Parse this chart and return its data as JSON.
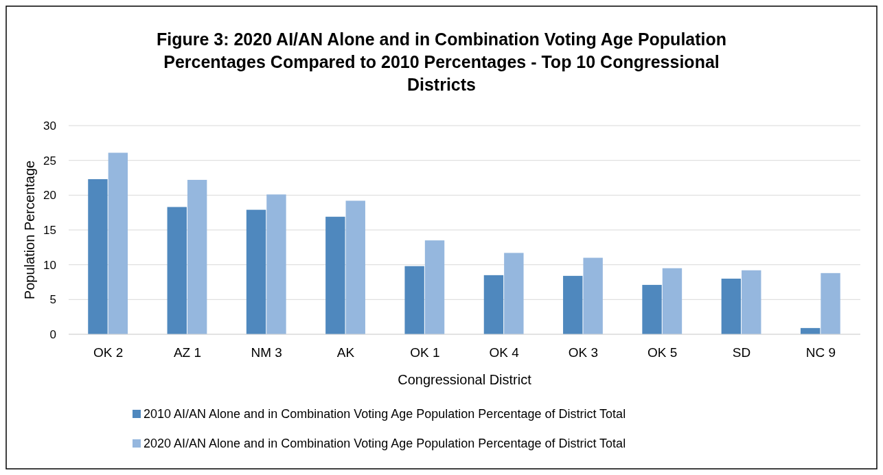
{
  "chart_data": {
    "type": "bar",
    "title": "Figure 3: 2020 AI/AN Alone and in Combination Voting Age Population Percentages Compared to 2010 Percentages - Top 10 Congressional Districts",
    "xlabel": "Congressional District",
    "ylabel": "Population Percentage",
    "categories": [
      "OK 2",
      "AZ 1",
      "NM 3",
      "AK",
      "OK 1",
      "OK 4",
      "OK 3",
      "OK 5",
      "SD",
      "NC 9"
    ],
    "series": [
      {
        "name": "2010 AI/AN Alone and in Combination Voting Age Population Percentage of District Total",
        "color": "#4f88be",
        "values": [
          22.3,
          18.3,
          17.9,
          16.9,
          9.8,
          8.5,
          8.4,
          7.1,
          8.0,
          0.9
        ]
      },
      {
        "name": "2020 AI/AN Alone and in Combination Voting Age Population Percentage of District Total",
        "color": "#95b7de",
        "values": [
          26.1,
          22.2,
          20.1,
          19.2,
          13.5,
          11.7,
          11.0,
          9.5,
          9.2,
          8.8
        ]
      }
    ],
    "ylim": [
      0,
      30
    ],
    "yticks": [
      0,
      5,
      10,
      15,
      20,
      25,
      30
    ],
    "grid": "y",
    "legend": "bottom"
  }
}
